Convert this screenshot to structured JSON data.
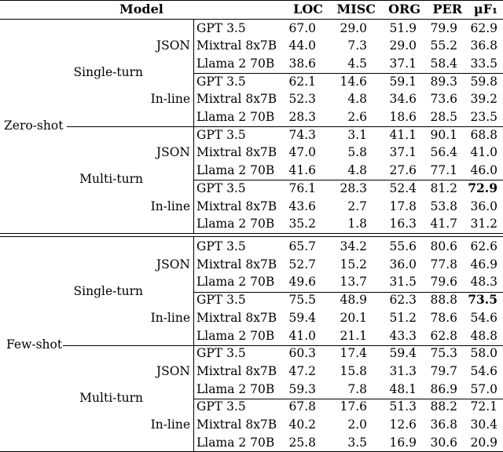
{
  "columns": [
    "Model",
    "LOC",
    "MISC",
    "ORG",
    "PER",
    "µF₁"
  ],
  "settings": [
    "Zero-shot",
    "Few-shot"
  ],
  "turns": [
    "Single-turn",
    "Multi-turn"
  ],
  "formats": [
    "JSON",
    "In-line"
  ],
  "models": [
    "GPT 3.5",
    "Mixtral 8x7B",
    "Llama 2 70B"
  ],
  "rows": [
    {
      "loc": "67.0",
      "misc": "29.0",
      "org": "51.9",
      "per": "79.9",
      "f1": "62.9",
      "best": false
    },
    {
      "loc": "44.0",
      "misc": "7.3",
      "org": "29.0",
      "per": "55.2",
      "f1": "36.8",
      "best": false
    },
    {
      "loc": "38.6",
      "misc": "4.5",
      "org": "37.1",
      "per": "58.4",
      "f1": "33.5",
      "best": false
    },
    {
      "loc": "62.1",
      "misc": "14.6",
      "org": "59.1",
      "per": "89.3",
      "f1": "59.8",
      "best": false
    },
    {
      "loc": "52.3",
      "misc": "4.8",
      "org": "34.6",
      "per": "73.6",
      "f1": "39.2",
      "best": false
    },
    {
      "loc": "28.3",
      "misc": "2.6",
      "org": "18.6",
      "per": "28.5",
      "f1": "23.5",
      "best": false
    },
    {
      "loc": "74.3",
      "misc": "3.1",
      "org": "41.1",
      "per": "90.1",
      "f1": "68.8",
      "best": false
    },
    {
      "loc": "47.0",
      "misc": "5.8",
      "org": "37.1",
      "per": "56.4",
      "f1": "41.0",
      "best": false
    },
    {
      "loc": "41.6",
      "misc": "4.8",
      "org": "27.6",
      "per": "77.1",
      "f1": "46.0",
      "best": false
    },
    {
      "loc": "76.1",
      "misc": "28.3",
      "org": "52.4",
      "per": "81.2",
      "f1": "72.9",
      "best": true
    },
    {
      "loc": "43.6",
      "misc": "2.7",
      "org": "17.8",
      "per": "53.8",
      "f1": "36.0",
      "best": false
    },
    {
      "loc": "35.2",
      "misc": "1.8",
      "org": "16.3",
      "per": "41.7",
      "f1": "31.2",
      "best": false
    },
    {
      "loc": "65.7",
      "misc": "34.2",
      "org": "55.6",
      "per": "80.6",
      "f1": "62.6",
      "best": false
    },
    {
      "loc": "52.7",
      "misc": "15.2",
      "org": "36.0",
      "per": "77.8",
      "f1": "46.9",
      "best": false
    },
    {
      "loc": "49.6",
      "misc": "13.7",
      "org": "31.5",
      "per": "79.6",
      "f1": "48.3",
      "best": false
    },
    {
      "loc": "75.5",
      "misc": "48.9",
      "org": "62.3",
      "per": "88.8",
      "f1": "73.5",
      "best": true
    },
    {
      "loc": "59.4",
      "misc": "20.1",
      "org": "51.2",
      "per": "78.6",
      "f1": "54.6",
      "best": false
    },
    {
      "loc": "41.0",
      "misc": "21.1",
      "org": "43.3",
      "per": "62.8",
      "f1": "48.8",
      "best": false
    },
    {
      "loc": "60.3",
      "misc": "17.4",
      "org": "59.4",
      "per": "75.3",
      "f1": "58.0",
      "best": false
    },
    {
      "loc": "47.2",
      "misc": "15.8",
      "org": "31.3",
      "per": "79.7",
      "f1": "54.6",
      "best": false
    },
    {
      "loc": "59.3",
      "misc": "7.8",
      "org": "48.1",
      "per": "86.9",
      "f1": "57.0",
      "best": false
    },
    {
      "loc": "67.8",
      "misc": "17.6",
      "org": "51.3",
      "per": "88.2",
      "f1": "72.1",
      "best": false
    },
    {
      "loc": "40.2",
      "misc": "2.0",
      "org": "12.6",
      "per": "36.8",
      "f1": "30.4",
      "best": false
    },
    {
      "loc": "25.8",
      "misc": "3.5",
      "org": "16.9",
      "per": "30.6",
      "f1": "20.9",
      "best": false
    }
  ]
}
